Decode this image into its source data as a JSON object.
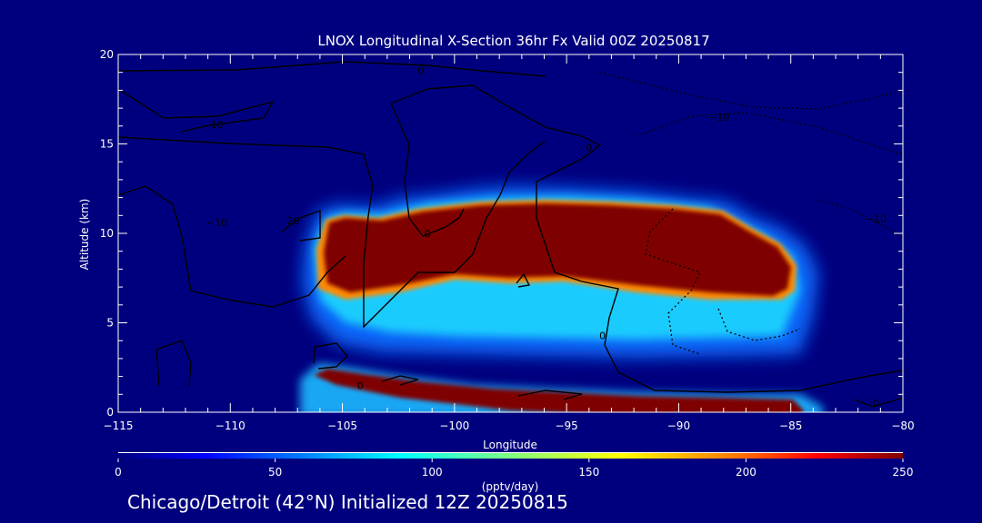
{
  "chart_data": {
    "type": "heatmap",
    "title": "LNOX Longitudinal X-Section 36hr  Fx Valid 00Z 20250817",
    "xlabel": "Longitude",
    "ylabel": "Altitude (km)",
    "xlim": [
      -115,
      -80
    ],
    "ylim": [
      0,
      20
    ],
    "x_ticks": [
      -115,
      -110,
      -105,
      -100,
      -95,
      -90,
      -85,
      -80
    ],
    "x_tick_labels": [
      "−115",
      "−110",
      "−105",
      "−100",
      "−95",
      "−90",
      "−85",
      "−80"
    ],
    "y_ticks": [
      0,
      5,
      10,
      15,
      20
    ],
    "y_tick_labels": [
      "0",
      "5",
      "10",
      "15",
      "20"
    ],
    "colorbar": {
      "min": 0,
      "max": 250,
      "ticks": [
        0,
        50,
        100,
        150,
        200,
        250
      ],
      "tick_labels": [
        "0",
        "50",
        "100",
        "150",
        "200",
        "250"
      ],
      "units": "(pptv/day)"
    },
    "fields": [
      {
        "name": "upper-anvil-lnox",
        "peak_value": 250,
        "lon_range": [
          -106.5,
          -84.5
        ],
        "core_alt_range": [
          7,
          11.5
        ],
        "halo_alt_range": [
          3.8,
          12.3
        ]
      },
      {
        "name": "lower-outflow-lnox",
        "peak_value": 250,
        "lon_range": [
          -106.5,
          -84.5
        ],
        "alt_range": [
          0,
          2.3
        ]
      }
    ],
    "contour_labels": [
      {
        "text": "0",
        "lon": -101.5,
        "alt": 19.1
      },
      {
        "text": "10",
        "lon": -110.6,
        "alt": 16.1
      },
      {
        "text": "0",
        "lon": -94,
        "alt": 14.8
      },
      {
        "text": "−10",
        "lon": -88.2,
        "alt": 16.5
      },
      {
        "text": "−10",
        "lon": -110.6,
        "alt": 10.6
      },
      {
        "text": "20",
        "lon": -107.2,
        "alt": 10.7
      },
      {
        "text": "0",
        "lon": -101.2,
        "alt": 10
      },
      {
        "text": "−10",
        "lon": -81.2,
        "alt": 10.8
      },
      {
        "text": "0",
        "lon": -93.4,
        "alt": 4.3
      },
      {
        "text": "0",
        "lon": -104.2,
        "alt": 1.5
      },
      {
        "text": "0",
        "lon": -81.2,
        "alt": 0.5
      }
    ]
  },
  "footer": {
    "text": "Chicago/Detroit (42°N) Initialized 12Z 20250815"
  },
  "colors": {
    "background": "#00007f",
    "axis": "#ffffff",
    "contour": "#000000",
    "colormap": [
      "#00007f",
      "#0000ff",
      "#007fff",
      "#00ffff",
      "#7fff7f",
      "#ffff00",
      "#ff7f00",
      "#ff0000",
      "#7f0000"
    ]
  }
}
